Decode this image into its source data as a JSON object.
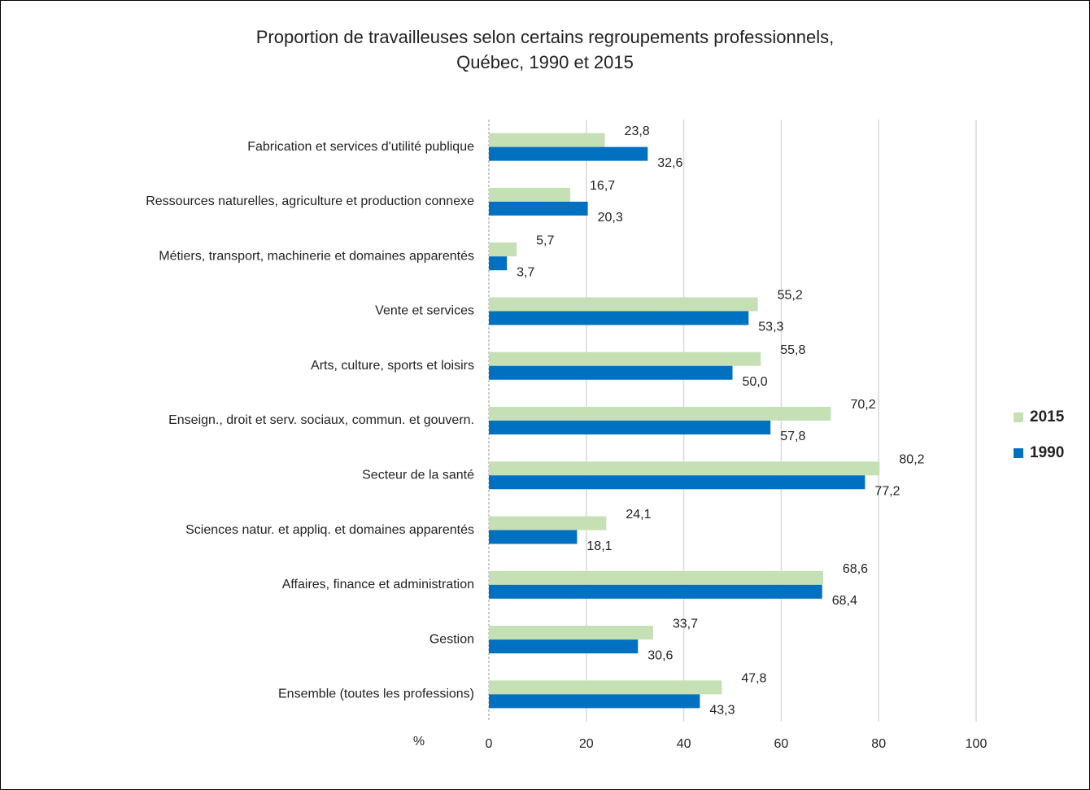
{
  "chart_data": {
    "type": "barh",
    "title": "Proportion de travailleuses selon certains regroupements professionnels,",
    "subtitle": "Québec, 1990 et 2015",
    "x_label": "%",
    "categories": [
      "Fabrication et services d'utilité publique",
      "Ressources naturelles, agriculture et production connexe",
      "Métiers, transport, machinerie et domaines apparentés",
      "Vente et services",
      "Arts, culture, sports et loisirs",
      "Enseign., droit et serv. sociaux, commun. et gouvern.",
      "Secteur de la santé",
      "Sciences natur. et appliq. et domaines apparentés",
      "Affaires, finance et administration",
      "Gestion",
      "Ensemble (toutes les professions)"
    ],
    "series": [
      {
        "name": "2015",
        "color": "#c5e0b4",
        "values": [
          23.8,
          16.7,
          5.7,
          55.2,
          55.8,
          70.2,
          80.2,
          24.1,
          68.6,
          33.7,
          47.8
        ],
        "value_labels": [
          "23,8",
          "16,7",
          "5,7",
          "55,2",
          "55,8",
          "70,2",
          "80,2",
          "24,1",
          "68,6",
          "33,7",
          "47,8"
        ]
      },
      {
        "name": "1990",
        "color": "#0070c0",
        "values": [
          32.6,
          20.3,
          3.7,
          53.3,
          50.0,
          57.8,
          77.2,
          18.1,
          68.4,
          30.6,
          43.3
        ],
        "value_labels": [
          "32,6",
          "20,3",
          "3,7",
          "53,3",
          "50,0",
          "57,8",
          "77,2",
          "18,1",
          "68,4",
          "30,6",
          "43,3"
        ]
      }
    ],
    "xlim": [
      0,
      100
    ],
    "xticks": [
      0,
      20,
      40,
      60,
      80,
      100
    ],
    "grid": true,
    "legend": "right"
  }
}
